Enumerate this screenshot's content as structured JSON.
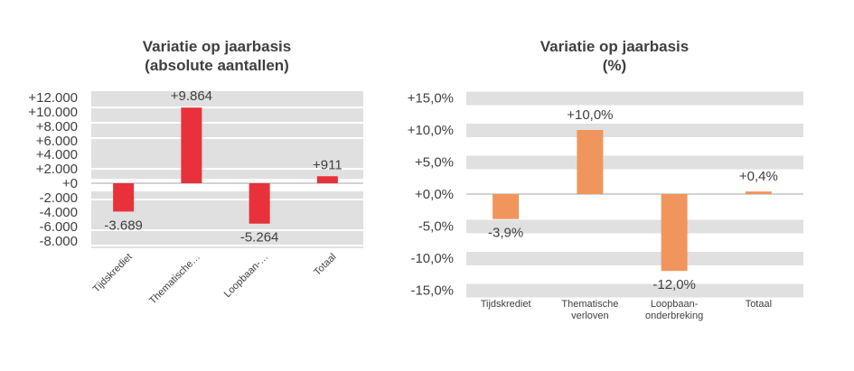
{
  "chart_data": [
    {
      "type": "bar",
      "title": "Variatie op jaarbasis",
      "subtitle": "(absolute aantallen)",
      "categories": [
        "Tijdskrediet",
        "Thematische…",
        "Loopbaan-…",
        "Totaal"
      ],
      "values": [
        -3689,
        9864,
        -5264,
        911
      ],
      "data_labels": [
        "-3.689",
        "+9.864",
        "-5.264",
        "+911"
      ],
      "ylim": [
        -9000,
        12000
      ],
      "yticks": [
        12000,
        10000,
        8000,
        6000,
        4000,
        2000,
        0,
        -2000,
        -4000,
        -6000,
        -8000
      ],
      "ytick_labels": [
        "+12.000",
        "+10.000",
        "+8.000",
        "+6.000",
        "+4.000",
        "+2.000",
        "+0",
        "-2.000",
        "-4.000",
        "-6.000",
        "-8.000"
      ],
      "xlabel": "",
      "ylabel": "",
      "grid": true,
      "bar_color": "#e8313a"
    },
    {
      "type": "bar",
      "title": "Variatie op jaarbasis",
      "subtitle": "(%)",
      "categories": [
        "Tijdskrediet",
        "Thematische verloven",
        "Loopbaan-onderbreking",
        "Totaal"
      ],
      "category_lines": [
        [
          "Tijdskrediet"
        ],
        [
          "Thematische",
          "verloven"
        ],
        [
          "Loopbaan-",
          "onderbreking"
        ],
        [
          "Totaal"
        ]
      ],
      "values": [
        -3.9,
        10.0,
        -12.0,
        0.4
      ],
      "data_labels": [
        "-3,9%",
        "+10,0%",
        "-12,0%",
        "+0,4%"
      ],
      "ylim": [
        -15,
        15
      ],
      "yticks": [
        15,
        10,
        5,
        0,
        -5,
        -10,
        -15
      ],
      "ytick_labels": [
        "+15,0%",
        "+10,0%",
        "+5,0%",
        "+0,0%",
        "-5,0%",
        "-10,0%",
        "-15,0%"
      ],
      "xlabel": "",
      "ylabel": "",
      "grid": true,
      "bar_color": "#f0965c"
    }
  ]
}
